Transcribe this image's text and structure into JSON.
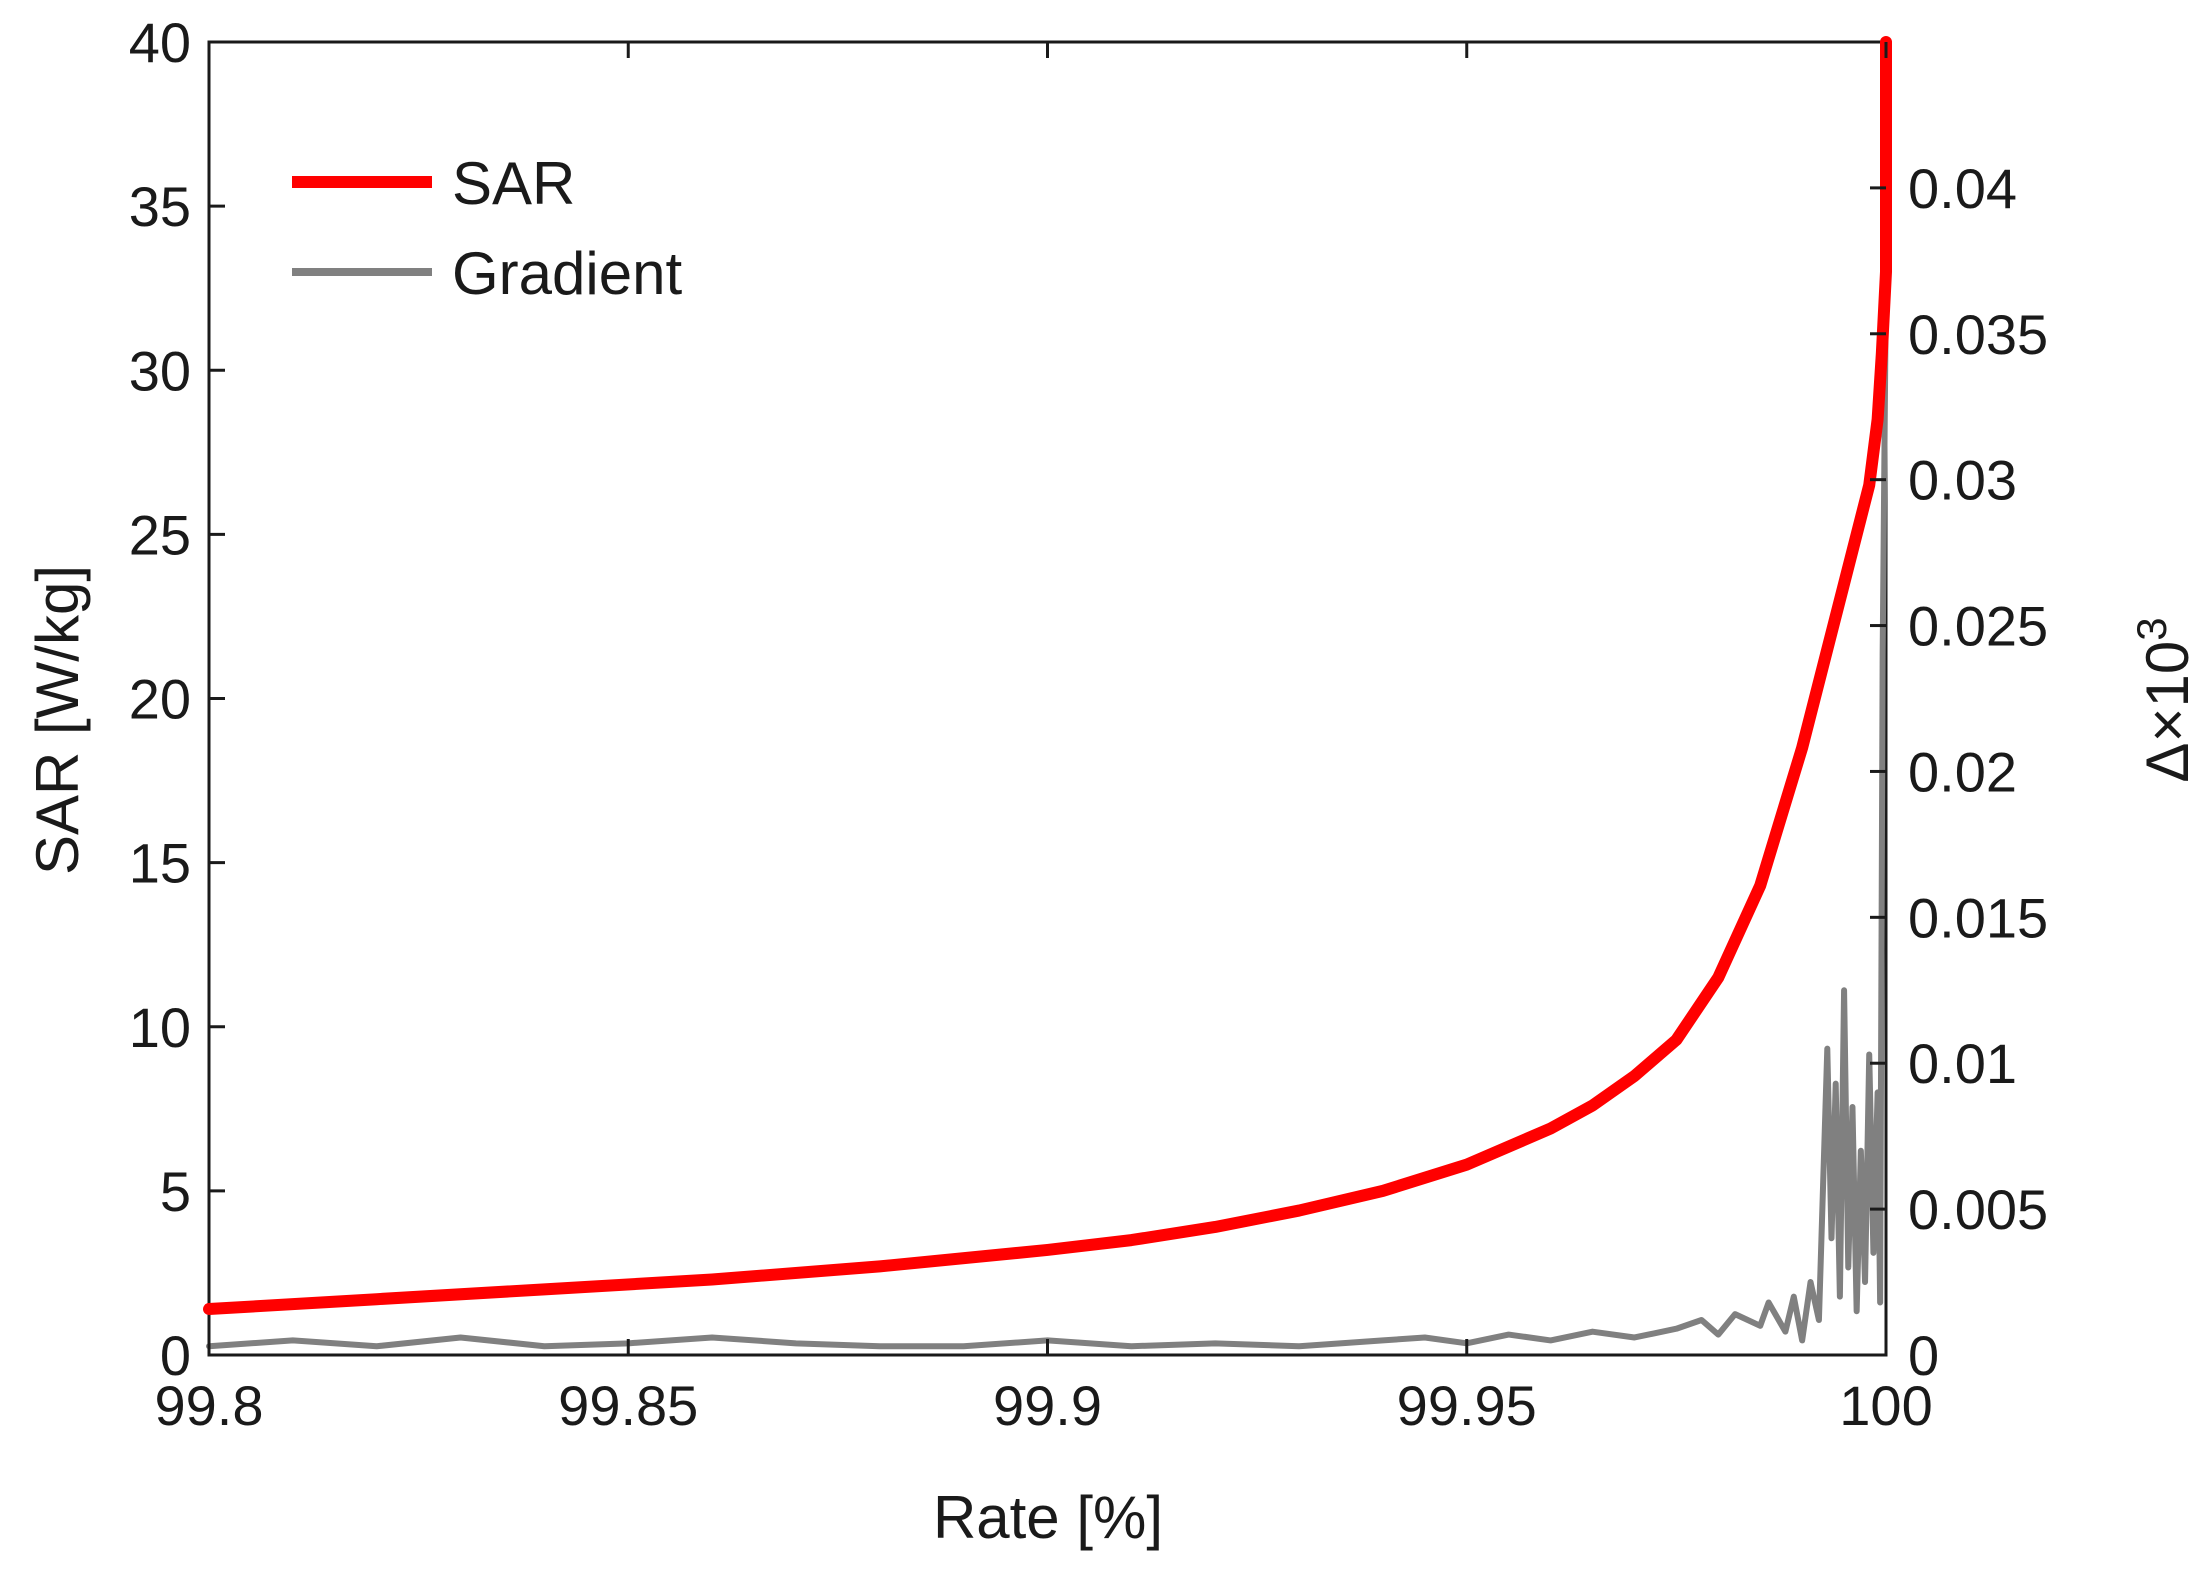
{
  "chart_data": {
    "type": "line",
    "xlabel": "Rate [%]",
    "ylabel": "SAR [W/kg]",
    "y2label": "Δ×10",
    "y2label_sup": "3",
    "xlim": [
      99.8,
      100
    ],
    "ylim": [
      0,
      40
    ],
    "y2lim": [
      0,
      0.045
    ],
    "grid": false,
    "legend_position": "top-left",
    "x_ticks": [
      99.8,
      99.85,
      99.9,
      99.95,
      100
    ],
    "x_tick_labels": [
      "99.8",
      "99.85",
      "99.9",
      "99.95",
      "100"
    ],
    "y_ticks": [
      0,
      5,
      10,
      15,
      20,
      25,
      30,
      35,
      40
    ],
    "y_tick_labels": [
      "0",
      "5",
      "10",
      "15",
      "20",
      "25",
      "30",
      "35",
      "40"
    ],
    "y2_ticks": [
      0,
      0.005,
      0.01,
      0.015,
      0.02,
      0.025,
      0.03,
      0.035,
      0.04
    ],
    "y2_tick_labels": [
      "0",
      "0.005",
      "0.01",
      "0.015",
      "0.02",
      "0.025",
      "0.03",
      "0.035",
      "0.04"
    ],
    "series": [
      {
        "name": "SAR",
        "axis": "left",
        "color": "#ff0000",
        "x": [
          99.8,
          99.82,
          99.84,
          99.86,
          99.88,
          99.9,
          99.91,
          99.92,
          99.93,
          99.94,
          99.95,
          99.96,
          99.965,
          99.97,
          99.975,
          99.98,
          99.985,
          99.99,
          99.993,
          99.995,
          99.997,
          99.998,
          99.999,
          99.9995,
          100,
          100
        ],
        "values": [
          1.4,
          1.7,
          2.0,
          2.3,
          2.7,
          3.2,
          3.5,
          3.9,
          4.4,
          5.0,
          5.8,
          6.9,
          7.6,
          8.5,
          9.6,
          11.5,
          14.3,
          18.5,
          21.5,
          23.5,
          25.5,
          26.5,
          28.5,
          30.5,
          33.0,
          40.0
        ]
      },
      {
        "name": "Gradient",
        "axis": "right",
        "color": "#808080",
        "x": [
          99.8,
          99.81,
          99.82,
          99.83,
          99.84,
          99.85,
          99.86,
          99.87,
          99.88,
          99.89,
          99.9,
          99.91,
          99.92,
          99.93,
          99.94,
          99.945,
          99.95,
          99.955,
          99.96,
          99.965,
          99.97,
          99.975,
          99.978,
          99.98,
          99.982,
          99.985,
          99.986,
          99.988,
          99.989,
          99.99,
          99.991,
          99.992,
          99.993,
          99.9935,
          99.994,
          99.9945,
          99.995,
          99.9955,
          99.996,
          99.9965,
          99.997,
          99.9975,
          99.998,
          99.9985,
          99.999,
          99.9993,
          99.9996,
          100
        ],
        "values": [
          0.0003,
          0.0005,
          0.0003,
          0.0006,
          0.0003,
          0.0004,
          0.0006,
          0.0004,
          0.0003,
          0.0003,
          0.0005,
          0.0003,
          0.0004,
          0.0003,
          0.0005,
          0.0006,
          0.0004,
          0.0007,
          0.0005,
          0.0008,
          0.0006,
          0.0009,
          0.0012,
          0.0007,
          0.0014,
          0.001,
          0.0018,
          0.0008,
          0.002,
          0.0005,
          0.0025,
          0.0012,
          0.0105,
          0.004,
          0.0093,
          0.002,
          0.0125,
          0.003,
          0.0085,
          0.0015,
          0.007,
          0.0025,
          0.0103,
          0.0035,
          0.009,
          0.0018,
          0.024,
          0.037
        ]
      }
    ]
  }
}
